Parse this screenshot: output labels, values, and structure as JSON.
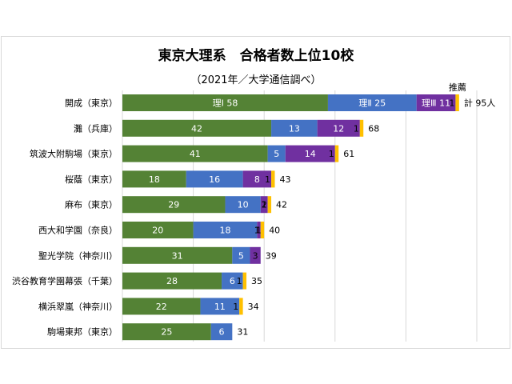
{
  "chart_data": {
    "type": "bar",
    "orientation": "horizontal",
    "stacked": true,
    "title": "東京大理系　合格者数上位10校",
    "subtitle": "（2021年／大学通信調べ）",
    "categories": [
      "開成（東京）",
      "灘（兵庫）",
      "筑波大附駒場（東京）",
      "桜蔭（東京）",
      "麻布（東京）",
      "西大和学園（奈良）",
      "聖光学院（神奈川）",
      "渋谷教育学園幕張（千葉）",
      "横浜翠嵐（神奈川）",
      "駒場東邦（東京）"
    ],
    "series": [
      {
        "name": "理Ⅰ",
        "color": "#548235",
        "values": [
          58,
          42,
          41,
          18,
          29,
          20,
          31,
          28,
          22,
          25
        ]
      },
      {
        "name": "理Ⅱ",
        "color": "#4472c4",
        "values": [
          25,
          13,
          5,
          16,
          10,
          18,
          5,
          6,
          11,
          6
        ]
      },
      {
        "name": "理Ⅲ",
        "color": "#7030a0",
        "values": [
          11,
          12,
          14,
          8,
          2,
          1,
          3,
          0,
          0,
          0
        ]
      },
      {
        "name": "推薦",
        "color": "#ffc000",
        "values": [
          1,
          1,
          1,
          1,
          1,
          1,
          0,
          1,
          1,
          0
        ]
      }
    ],
    "totals": [
      95,
      68,
      61,
      43,
      42,
      40,
      39,
      35,
      34,
      31
    ],
    "first_row_labels": {
      "s0": "理Ⅰ 58",
      "s1": "理Ⅱ 25",
      "s2": "理Ⅲ 11",
      "s3": "1",
      "total": "計 95人",
      "suisen": "推薦"
    },
    "xlim": [
      0,
      120
    ],
    "gridlines": [
      0,
      20,
      40,
      60,
      80,
      100
    ],
    "legend": "none"
  }
}
